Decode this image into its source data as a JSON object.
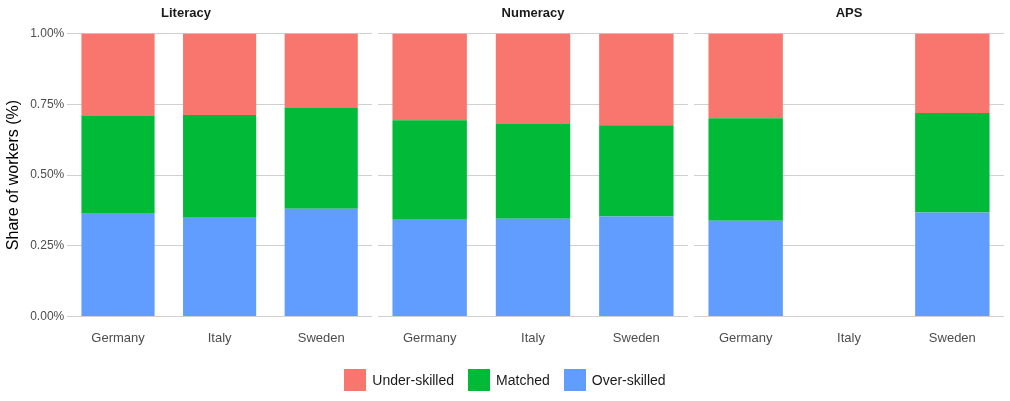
{
  "chart_data": [
    {
      "type": "bar",
      "title": "Literacy",
      "ylabel": "Share of workers (%)",
      "categories": [
        "Germany",
        "Italy",
        "Sweden"
      ],
      "stacked": true,
      "ylim": [
        0,
        1
      ],
      "yticks": [
        {
          "value": 0,
          "label": "0.00%"
        },
        {
          "value": 0.25,
          "label": "0.25%"
        },
        {
          "value": 0.5,
          "label": "0.50%"
        },
        {
          "value": 0.75,
          "label": "0.75%"
        },
        {
          "value": 1,
          "label": "1.00%"
        }
      ],
      "grid": "y",
      "legend": "bottom",
      "series": [
        {
          "name": "Over-skilled",
          "color": "#619cff",
          "values": [
            0.363,
            0.349,
            0.381
          ]
        },
        {
          "name": "Matched",
          "color": "#00ba38",
          "values": [
            0.346,
            0.363,
            0.356
          ]
        },
        {
          "name": "Under-skilled",
          "color": "#f8766d",
          "values": [
            0.291,
            0.288,
            0.263
          ]
        }
      ]
    },
    {
      "type": "bar",
      "title": "Numeracy",
      "categories": [
        "Germany",
        "Italy",
        "Sweden"
      ],
      "stacked": true,
      "ylim": [
        0,
        1
      ],
      "yticks": [
        0,
        0.25,
        0.5,
        0.75,
        1
      ],
      "grid": "y",
      "tick_labels": "x",
      "series": [
        {
          "color": "#619cff",
          "values": [
            0.342,
            0.345,
            0.353
          ]
        },
        {
          "color": "#00ba38",
          "values": [
            0.352,
            0.335,
            0.323
          ]
        },
        {
          "color": "#f8766d",
          "values": [
            0.306,
            0.32,
            0.324
          ]
        }
      ]
    },
    {
      "type": "bar",
      "title": "APS",
      "categories": [
        "Germany",
        "Italy",
        "Sweden"
      ],
      "stacked": true,
      "ylim": [
        0,
        1
      ],
      "yticks": [
        0,
        0.25,
        0.5,
        0.75,
        1
      ],
      "grid": "y",
      "tick_labels": "x",
      "series": [
        {
          "color": "#619cff",
          "values": [
            0.338,
            null,
            0.367
          ]
        },
        {
          "color": "#00ba38",
          "values": [
            0.363,
            null,
            0.352
          ]
        },
        {
          "color": "#f8766d",
          "values": [
            0.299,
            null,
            0.281
          ]
        }
      ]
    }
  ]
}
